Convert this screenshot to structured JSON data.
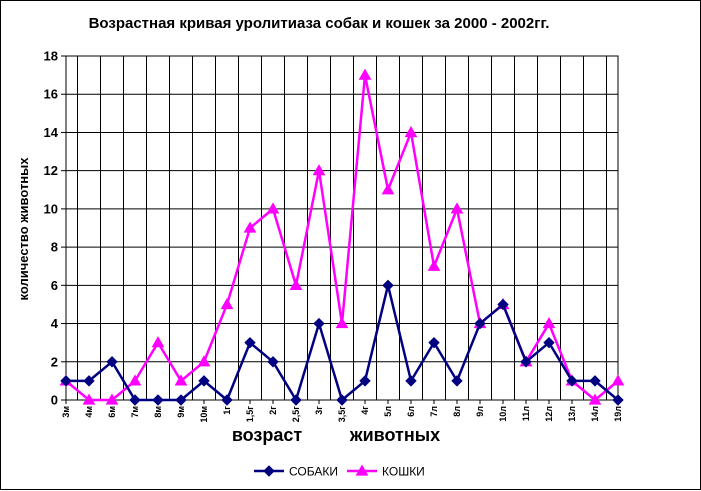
{
  "chart_data": {
    "type": "line",
    "title": "Возрастная кривая уролитиаза собак и кошек за 2000 - 2002гг.",
    "ylabel": "количество животных",
    "xlabel_parts": [
      "возраст",
      "животных"
    ],
    "ylim": [
      0,
      18
    ],
    "yticks": [
      0,
      2,
      4,
      6,
      8,
      10,
      12,
      14,
      16,
      18
    ],
    "grid": true,
    "legend_position": "bottom",
    "categories": [
      "3м",
      "4м",
      "6м",
      "7м",
      "8м",
      "9м",
      "10м",
      "1г",
      "1,5г",
      "2г",
      "2,5г",
      "3г",
      "3,5г",
      "4г",
      "5л",
      "6л",
      "7л",
      "8л",
      "9л",
      "10л",
      "11л",
      "12л",
      "13л",
      "14л",
      "19л"
    ],
    "series": [
      {
        "name": "СОБАКИ",
        "color": "#000080",
        "marker": "diamond",
        "values": [
          1,
          1,
          2,
          0,
          0,
          0,
          1,
          0,
          3,
          2,
          0,
          4,
          0,
          1,
          6,
          1,
          3,
          1,
          4,
          5,
          2,
          3,
          1,
          1,
          0
        ]
      },
      {
        "name": "КОШКИ",
        "color": "#ff00ff",
        "marker": "triangle",
        "values": [
          1,
          0,
          0,
          1,
          3,
          1,
          2,
          5,
          9,
          10,
          6,
          12,
          4,
          17,
          11,
          14,
          7,
          10,
          4,
          5,
          2,
          4,
          1,
          0,
          1
        ]
      }
    ]
  }
}
